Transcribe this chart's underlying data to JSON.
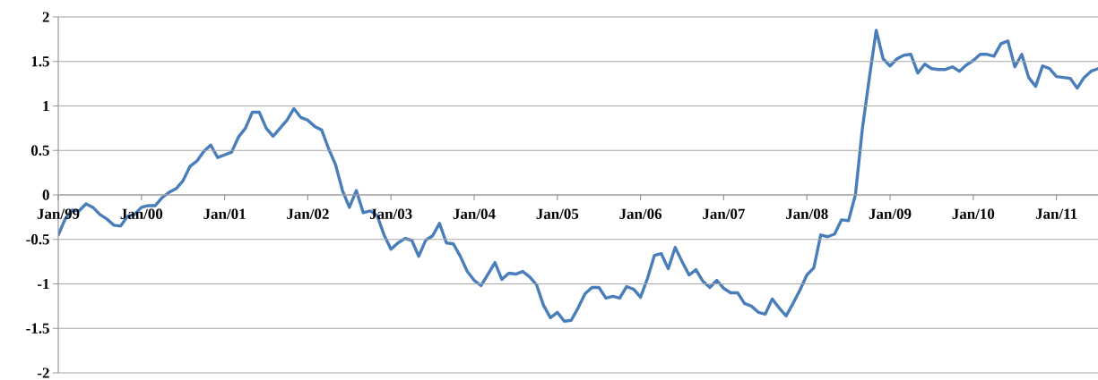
{
  "chart_data": {
    "type": "line",
    "x": [
      "1999-01",
      "1999-02",
      "1999-03",
      "1999-04",
      "1999-05",
      "1999-06",
      "1999-07",
      "1999-08",
      "1999-09",
      "1999-10",
      "1999-11",
      "1999-12",
      "2000-01",
      "2000-02",
      "2000-03",
      "2000-04",
      "2000-05",
      "2000-06",
      "2000-07",
      "2000-08",
      "2000-09",
      "2000-10",
      "2000-11",
      "2000-12",
      "2001-01",
      "2001-02",
      "2001-03",
      "2001-04",
      "2001-05",
      "2001-06",
      "2001-07",
      "2001-08",
      "2001-09",
      "2001-10",
      "2001-11",
      "2001-12",
      "2002-01",
      "2002-02",
      "2002-03",
      "2002-04",
      "2002-05",
      "2002-06",
      "2002-07",
      "2002-08",
      "2002-09",
      "2002-10",
      "2002-11",
      "2002-12",
      "2003-01",
      "2003-02",
      "2003-03",
      "2003-04",
      "2003-05",
      "2003-06",
      "2003-07",
      "2003-08",
      "2003-09",
      "2003-10",
      "2003-11",
      "2003-12",
      "2004-01",
      "2004-02",
      "2004-03",
      "2004-04",
      "2004-05",
      "2004-06",
      "2004-07",
      "2004-08",
      "2004-09",
      "2004-10",
      "2004-11",
      "2004-12",
      "2005-01",
      "2005-02",
      "2005-03",
      "2005-04",
      "2005-05",
      "2005-06",
      "2005-07",
      "2005-08",
      "2005-09",
      "2005-10",
      "2005-11",
      "2005-12",
      "2006-01",
      "2006-02",
      "2006-03",
      "2006-04",
      "2006-05",
      "2006-06",
      "2006-07",
      "2006-08",
      "2006-09",
      "2006-10",
      "2006-11",
      "2006-12",
      "2007-01",
      "2007-02",
      "2007-03",
      "2007-04",
      "2007-05",
      "2007-06",
      "2007-07",
      "2007-08",
      "2007-09",
      "2007-10",
      "2007-11",
      "2007-12",
      "2008-01",
      "2008-02",
      "2008-03",
      "2008-04",
      "2008-05",
      "2008-06",
      "2008-07",
      "2008-08",
      "2008-09",
      "2008-10",
      "2008-11",
      "2008-12",
      "2009-01",
      "2009-02",
      "2009-03",
      "2009-04",
      "2009-05",
      "2009-06",
      "2009-07",
      "2009-08",
      "2009-09",
      "2009-10",
      "2009-11",
      "2009-12",
      "2010-01",
      "2010-02",
      "2010-03",
      "2010-04",
      "2010-05",
      "2010-06",
      "2010-07",
      "2010-08",
      "2010-09",
      "2010-10",
      "2010-11",
      "2010-12",
      "2011-01",
      "2011-02",
      "2011-03",
      "2011-04",
      "2011-05",
      "2011-06",
      "2011-07"
    ],
    "series": [
      {
        "color": "#4a7ebb",
        "values": [
          -0.45,
          -0.27,
          -0.17,
          -0.18,
          -0.1,
          -0.14,
          -0.22,
          -0.27,
          -0.34,
          -0.35,
          -0.24,
          -0.22,
          -0.14,
          -0.12,
          -0.12,
          -0.03,
          0.03,
          0.07,
          0.16,
          0.32,
          0.38,
          0.49,
          0.56,
          0.42,
          0.45,
          0.48,
          0.65,
          0.75,
          0.93,
          0.93,
          0.75,
          0.66,
          0.75,
          0.84,
          0.97,
          0.87,
          0.84,
          0.77,
          0.73,
          0.52,
          0.34,
          0.05,
          -0.14,
          0.05,
          -0.2,
          -0.18,
          -0.23,
          -0.45,
          -0.61,
          -0.54,
          -0.49,
          -0.51,
          -0.69,
          -0.51,
          -0.46,
          -0.32,
          -0.54,
          -0.55,
          -0.69,
          -0.86,
          -0.96,
          -1.02,
          -0.89,
          -0.76,
          -0.95,
          -0.88,
          -0.89,
          -0.86,
          -0.92,
          -1.01,
          -1.24,
          -1.38,
          -1.32,
          -1.42,
          -1.41,
          -1.27,
          -1.11,
          -1.04,
          -1.04,
          -1.16,
          -1.14,
          -1.16,
          -1.03,
          -1.06,
          -1.15,
          -0.94,
          -0.68,
          -0.66,
          -0.83,
          -0.59,
          -0.75,
          -0.9,
          -0.84,
          -0.97,
          -1.04,
          -0.96,
          -1.05,
          -1.1,
          -1.1,
          -1.22,
          -1.25,
          -1.32,
          -1.34,
          -1.17,
          -1.27,
          -1.36,
          -1.22,
          -1.07,
          -0.9,
          -0.82,
          -0.45,
          -0.47,
          -0.44,
          -0.28,
          -0.29,
          0.0,
          0.74,
          1.31,
          1.85,
          1.53,
          1.45,
          1.53,
          1.57,
          1.58,
          1.37,
          1.47,
          1.42,
          1.41,
          1.41,
          1.44,
          1.39,
          1.46,
          1.51,
          1.58,
          1.58,
          1.56,
          1.7,
          1.73,
          1.44,
          1.58,
          1.32,
          1.22,
          1.45,
          1.42,
          1.33,
          1.32,
          1.31,
          1.2,
          1.32,
          1.39,
          1.42
        ]
      }
    ],
    "xlim": [
      "1999-01",
      "2011-07"
    ],
    "xticks": [
      {
        "value": "1999-01",
        "label": "Jan/99"
      },
      {
        "value": "2000-01",
        "label": "Jan/00"
      },
      {
        "value": "2001-01",
        "label": "Jan/01"
      },
      {
        "value": "2002-01",
        "label": "Jan/02"
      },
      {
        "value": "2003-01",
        "label": "Jan/03"
      },
      {
        "value": "2004-01",
        "label": "Jan/04"
      },
      {
        "value": "2005-01",
        "label": "Jan/05"
      },
      {
        "value": "2006-01",
        "label": "Jan/06"
      },
      {
        "value": "2007-01",
        "label": "Jan/07"
      },
      {
        "value": "2008-01",
        "label": "Jan/08"
      },
      {
        "value": "2009-01",
        "label": "Jan/09"
      },
      {
        "value": "2010-01",
        "label": "Jan/10"
      },
      {
        "value": "2011-01",
        "label": "Jan/11"
      }
    ],
    "ylim": [
      -2,
      2
    ],
    "yticks": [
      -2,
      -1.5,
      -1,
      -0.5,
      0,
      0.5,
      1,
      1.5,
      2
    ],
    "grid": "y"
  }
}
